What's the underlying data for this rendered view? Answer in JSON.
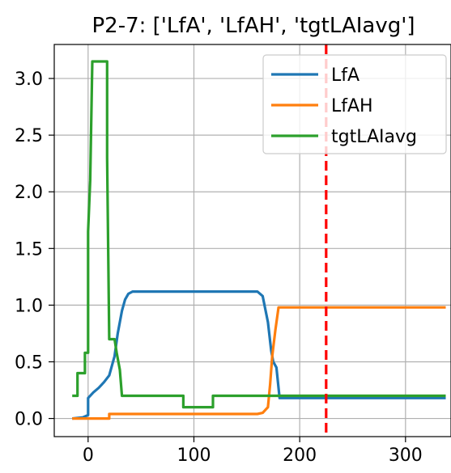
{
  "chart_data": {
    "type": "line",
    "title": "P2-7: ['LfA', 'LfAH', 'tgtLAIavg']",
    "xlabel": "",
    "ylabel": "",
    "xlim": [
      -32,
      343
    ],
    "ylim": [
      -0.16,
      3.3
    ],
    "grid": true,
    "legend_position": "top-right",
    "x_ticks": [
      {
        "value": 0,
        "label": "0"
      },
      {
        "value": 100,
        "label": "100"
      },
      {
        "value": 200,
        "label": "200"
      },
      {
        "value": 300,
        "label": "300"
      }
    ],
    "y_ticks": [
      {
        "value": 0.0,
        "label": "0.0"
      },
      {
        "value": 0.5,
        "label": "0.5"
      },
      {
        "value": 1.0,
        "label": "1.0"
      },
      {
        "value": 1.5,
        "label": "1.5"
      },
      {
        "value": 2.0,
        "label": "2.0"
      },
      {
        "value": 2.5,
        "label": "2.5"
      },
      {
        "value": 3.0,
        "label": "3.0"
      }
    ],
    "vline": {
      "x": 225,
      "color": "#ff0000",
      "style": "dashed"
    },
    "series": [
      {
        "name": "LfA",
        "color": "#1f77b4",
        "points": [
          [
            -15,
            0.0
          ],
          [
            -5,
            0.01
          ],
          [
            0,
            0.03
          ],
          [
            0,
            0.18
          ],
          [
            5,
            0.23
          ],
          [
            10,
            0.27
          ],
          [
            15,
            0.32
          ],
          [
            20,
            0.38
          ],
          [
            25,
            0.55
          ],
          [
            28,
            0.75
          ],
          [
            32,
            0.95
          ],
          [
            35,
            1.05
          ],
          [
            38,
            1.1
          ],
          [
            42,
            1.12
          ],
          [
            60,
            1.12
          ],
          [
            100,
            1.12
          ],
          [
            140,
            1.12
          ],
          [
            160,
            1.12
          ],
          [
            165,
            1.08
          ],
          [
            170,
            0.85
          ],
          [
            173,
            0.6
          ],
          [
            175,
            0.5
          ],
          [
            178,
            0.45
          ],
          [
            181,
            0.18
          ],
          [
            200,
            0.18
          ],
          [
            260,
            0.18
          ],
          [
            338,
            0.18
          ]
        ]
      },
      {
        "name": "LfAH",
        "color": "#ff7f0e",
        "points": [
          [
            -15,
            0.0
          ],
          [
            20,
            0.0
          ],
          [
            20,
            0.04
          ],
          [
            100,
            0.04
          ],
          [
            160,
            0.04
          ],
          [
            165,
            0.05
          ],
          [
            170,
            0.1
          ],
          [
            172,
            0.3
          ],
          [
            174,
            0.55
          ],
          [
            177,
            0.78
          ],
          [
            180,
            0.98
          ],
          [
            200,
            0.98
          ],
          [
            260,
            0.98
          ],
          [
            338,
            0.98
          ]
        ]
      },
      {
        "name": "tgtLAIavg",
        "color": "#2ca02c",
        "points": [
          [
            -15,
            0.2
          ],
          [
            -10,
            0.2
          ],
          [
            -10,
            0.4
          ],
          [
            -3,
            0.4
          ],
          [
            -3,
            0.58
          ],
          [
            0,
            0.58
          ],
          [
            0,
            1.65
          ],
          [
            2,
            2.1
          ],
          [
            4,
            3.15
          ],
          [
            18,
            3.15
          ],
          [
            18,
            2.3
          ],
          [
            20,
            0.7
          ],
          [
            25,
            0.7
          ],
          [
            27,
            0.58
          ],
          [
            30,
            0.43
          ],
          [
            32,
            0.2
          ],
          [
            90,
            0.2
          ],
          [
            90,
            0.1
          ],
          [
            118,
            0.1
          ],
          [
            118,
            0.2
          ],
          [
            200,
            0.2
          ],
          [
            338,
            0.2
          ]
        ]
      }
    ]
  }
}
